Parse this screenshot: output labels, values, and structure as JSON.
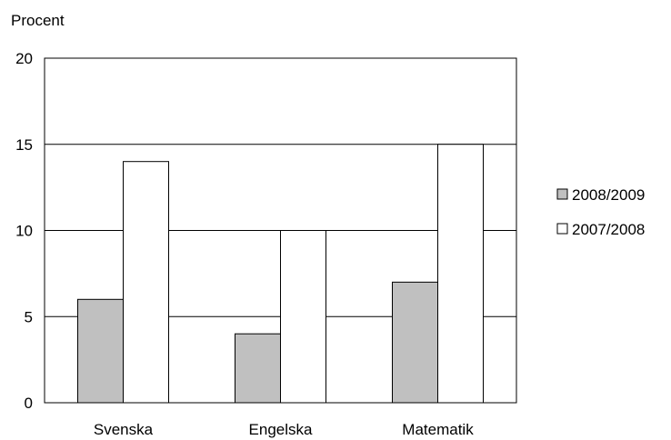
{
  "chart_data": {
    "type": "bar",
    "ylabel": "Procent",
    "xlabel": "",
    "title": "",
    "ylim": [
      0,
      20
    ],
    "yticks": [
      0,
      5,
      10,
      15,
      20
    ],
    "grid": true,
    "legend_position": "right",
    "categories": [
      "Svenska",
      "Engelska",
      "Matematik"
    ],
    "series": [
      {
        "name": "2008/2009",
        "color": "#c0c0c0",
        "values": [
          6,
          4,
          7
        ]
      },
      {
        "name": "2007/2008",
        "color": "#ffffff",
        "values": [
          14,
          10,
          15
        ]
      }
    ]
  }
}
